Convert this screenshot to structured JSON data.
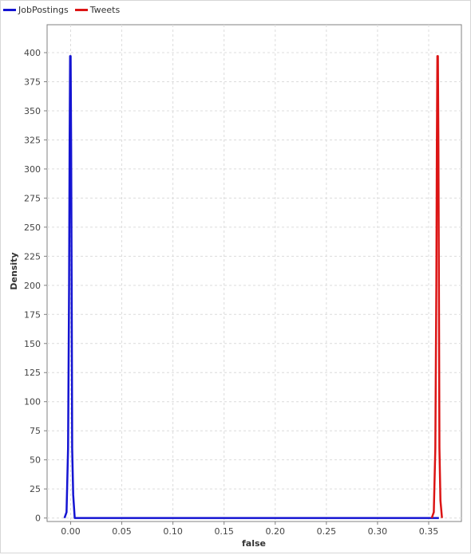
{
  "chart_data": {
    "type": "line",
    "title": "",
    "xlabel": "false",
    "ylabel": "Density",
    "xlim": [
      -0.023,
      0.382
    ],
    "ylim": [
      -3,
      424
    ],
    "x_ticks": [
      0.0,
      0.05,
      0.1,
      0.15,
      0.2,
      0.25,
      0.3,
      0.35
    ],
    "x_tick_labels": [
      "0.00",
      "0.05",
      "0.10",
      "0.15",
      "0.20",
      "0.25",
      "0.30",
      "0.35"
    ],
    "y_ticks": [
      0,
      25,
      50,
      75,
      100,
      125,
      150,
      175,
      200,
      225,
      250,
      275,
      300,
      325,
      350,
      375,
      400
    ],
    "y_tick_labels": [
      "0",
      "25",
      "50",
      "75",
      "100",
      "125",
      "150",
      "175",
      "200",
      "225",
      "250",
      "275",
      "300",
      "325",
      "350",
      "375",
      "400"
    ],
    "grid": true,
    "legend_position": "top-left",
    "series": [
      {
        "name": "JobPostings",
        "color": "#1414d2",
        "x": [
          -0.006,
          -0.004,
          -0.0025,
          -0.0015,
          -0.001,
          -0.0005,
          0.0,
          0.0005,
          0.001,
          0.0015,
          0.0025,
          0.004,
          0.36
        ],
        "y": [
          0,
          5,
          60,
          200,
          320,
          397,
          397,
          320,
          200,
          60,
          20,
          0,
          0
        ]
      },
      {
        "name": "Tweets",
        "color": "#dc1414",
        "x": [
          0.353,
          0.355,
          0.3565,
          0.3575,
          0.358,
          0.3585,
          0.359,
          0.3595,
          0.36,
          0.3605,
          0.3615,
          0.363
        ],
        "y": [
          0,
          5,
          60,
          200,
          320,
          397,
          397,
          320,
          200,
          60,
          15,
          0
        ]
      }
    ]
  }
}
